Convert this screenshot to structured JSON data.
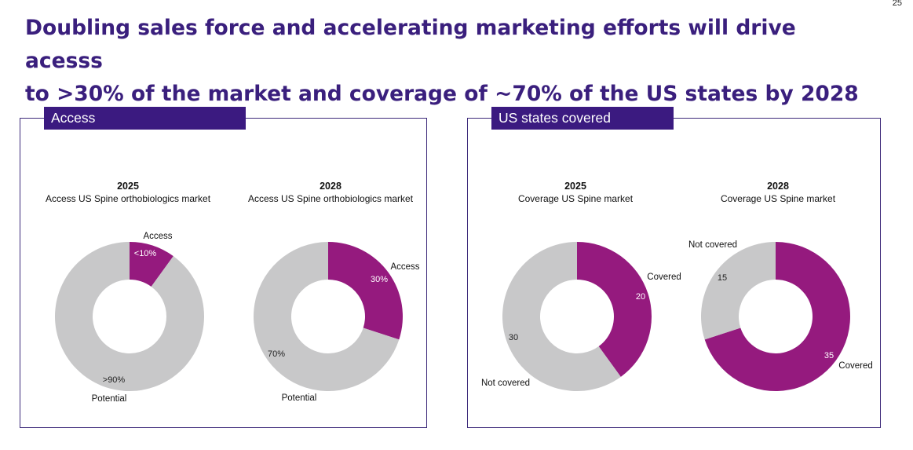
{
  "page_number": "25",
  "title_line1": "Doubling sales force and accelerating marketing efforts will drive acesss",
  "title_line2": "to >30% of the market and coverage of ~70% of the US states by 2028",
  "colors": {
    "accent": "#951a7e",
    "neutral": "#c8c8c9",
    "header": "#3b1a80",
    "title": "#3a1f7d"
  },
  "panels": [
    {
      "label": "Access"
    },
    {
      "label": "US states covered"
    }
  ],
  "chart_data": [
    {
      "type": "pie",
      "donut": true,
      "title": "2025",
      "subtitle": "Access US Spine orthobiologics market",
      "slices": [
        {
          "name": "Access",
          "value": 10,
          "label": "<10%"
        },
        {
          "name": "Potential",
          "value": 90,
          "label": ">90%"
        }
      ]
    },
    {
      "type": "pie",
      "donut": true,
      "title": "2028",
      "subtitle": "Access US Spine orthobiologics market",
      "slices": [
        {
          "name": "Access",
          "value": 30,
          "label": "30%"
        },
        {
          "name": "Potential",
          "value": 70,
          "label": "70%"
        }
      ]
    },
    {
      "type": "pie",
      "donut": true,
      "title": "2025",
      "subtitle": "Coverage US Spine market",
      "slices": [
        {
          "name": "Covered",
          "value": 20,
          "label": "20"
        },
        {
          "name": "Not covered",
          "value": 30,
          "label": "30"
        }
      ]
    },
    {
      "type": "pie",
      "donut": true,
      "title": "2028",
      "subtitle": "Coverage US Spine market",
      "slices": [
        {
          "name": "Covered",
          "value": 35,
          "label": "35"
        },
        {
          "name": "Not covered",
          "value": 15,
          "label": "15"
        }
      ]
    }
  ]
}
